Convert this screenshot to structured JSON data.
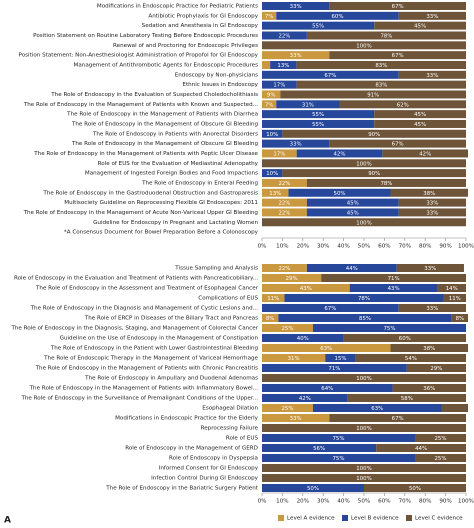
{
  "panel_label": "A",
  "chart_data": [
    {
      "type": "stacked-barh",
      "categories": [
        "Modifications in Endoscopic Practice for Pediatric Patients",
        "Antibiotic Prophylaxis for GI Endoscopy",
        "Sedation and Anesthesia in GI Endoscopy",
        "Position Statement on Routine Laboratory Testing Before Endoscopic Procedures",
        "Renewal of and Proctoring for Endoscopic Privileges",
        "Position Statement: Non-Anesthesiologist Administration of Propofol for GI Endoscopy",
        "Management of Antithrombotic Agents for Endoscopic Procedures",
        "Endoscopy by Non-physicians",
        "Ethnic Issues in Endoscopy",
        "The Role of Endoscopy in the Evaluation of Suspected Choledocholithiasis",
        "The Role of Endoscopy in the Management of Patients with Known and Suspected...",
        "The Role of Endoscopy in the Management of Patients with Diarrhea",
        "The Role of Endoscopy in the Management of Obscure GI Bleeding",
        "The Role of Endoscopy in Patients with Anorectal Disorders",
        "The Role of Endoscopy in the Management of Obscure GI Bleeding",
        "The Role of Endoscopy in the Management of Patients with Peptic Ulcer Disease",
        "Role of EUS for the Evaluation of Mediastinal Adenopathy",
        "Management of Ingested Foreign Bodies and Food Impactions",
        "The Role of Endoscopy in Enteral Feeding",
        "The Role of Endoscopy in the Gastroduodenal Obstruction and Gastroparesis",
        "Multisociety Guideline on Reprocessing Flexible GI Endoscopes: 2011",
        "The Role of Endoscopy in the Management of Acute Non-Variceal Upper GI Bleeding",
        "Guideline for Endoscopy in Pregnant and Lactating Women",
        "*A Consensus Document for Bowel Preparation Before a Colonoscopy"
      ],
      "series": [
        {
          "color": "#c9983f",
          "values": [
            0,
            7,
            0,
            0,
            0,
            33,
            4,
            0,
            0,
            9,
            7,
            0,
            0,
            0,
            0,
            17,
            0,
            0,
            22,
            13,
            22,
            22,
            0,
            null
          ],
          "value_labels": [
            null,
            "7%",
            null,
            null,
            null,
            "33%",
            null,
            null,
            null,
            "9%",
            "7%",
            null,
            null,
            null,
            null,
            "17%",
            null,
            null,
            "22%",
            "13%",
            "22%",
            "22%",
            null,
            null
          ]
        },
        {
          "color": "#27479b",
          "values": [
            33,
            60,
            55,
            22,
            0,
            0,
            13,
            67,
            17,
            0,
            31,
            55,
            55,
            10,
            33,
            42,
            0,
            10,
            0,
            50,
            45,
            45,
            0,
            null
          ],
          "value_labels": [
            "33%",
            "60%",
            "55%",
            "22%",
            null,
            null,
            "13%",
            "67%",
            "17%",
            null,
            "31%",
            "55%",
            "55%",
            "10%",
            "33%",
            "42%",
            null,
            "10%",
            null,
            "50%",
            "45%",
            "45%",
            null,
            null
          ]
        },
        {
          "color": "#6e5438",
          "values": [
            67,
            33,
            45,
            78,
            100,
            67,
            83,
            33,
            83,
            91,
            62,
            45,
            45,
            90,
            67,
            42,
            100,
            90,
            78,
            38,
            33,
            33,
            100,
            null
          ],
          "value_labels": [
            "67%",
            "33%",
            "45%",
            "78%",
            "100%",
            "67%",
            "83%",
            "33%",
            "83%",
            "91%",
            "62%",
            "45%",
            "45%",
            "90%",
            "67%",
            "42%",
            "100%",
            "90%",
            "78%",
            "38%",
            "33%",
            "33%",
            "100%",
            null
          ]
        }
      ],
      "xlim": [
        0,
        100
      ],
      "xticks": [
        {
          "value": 0,
          "label": "0%"
        },
        {
          "value": 10,
          "label": "10%"
        },
        {
          "value": 20,
          "label": "20%"
        },
        {
          "value": 30,
          "label": "30%"
        },
        {
          "value": 40,
          "label": "40%"
        },
        {
          "value": 50,
          "label": "50%"
        },
        {
          "value": 60,
          "label": "60%"
        },
        {
          "value": 70,
          "label": "70%"
        },
        {
          "value": 80,
          "label": "80%"
        },
        {
          "value": 90,
          "label": "90%"
        },
        {
          "value": 100,
          "label": "100%"
        }
      ]
    },
    {
      "type": "stacked-barh",
      "categories": [
        "Tissue Sampling and Analysis",
        "Role of Endoscopy in the Evaluation and Treatment of Patients with Pancreaticobiliary...",
        "The Role of Endoscopy in the Assessment and Treatment of Esophageal Cancer",
        "Complications of EUS",
        "The Role of Endoscopy in the Diagnosis and Management of Cystic Lesions and...",
        "The Role of ERCP in Diseases of the Biliary Tract and Pancreas",
        "The Role of Endoscopy in the Diagnosis, Staging, and Management of Colorectal Cancer",
        "Guideline on the Use of Endoscopy in the Management of Constipation",
        "The Role of Endoscopy in the Patient with Lower Gastrointestinal Bleeding",
        "The Role of Endoscopic Therapy in the Management of Variceal Hemorrhage",
        "The Role of Endoscopy in the Management of Patients with Chronic Pancreatitis",
        "The Role of Endoscopy in Ampullary and Duodenal Adenomas",
        "The Role of Endoscopy in the Management of Patients with Inflammatory Bowel...",
        "The Role of Endoscopy in the Surveillance of Premalignant Conditions of the Upper...",
        "Esophageal Dilation",
        "Modifications in Endoscopic Practice for the Elderly",
        "Reprocessing Failure",
        "Role of EUS",
        "Role of Endoscopy in the Management of GERD",
        "Role of Endoscopy in Dyspepsia",
        "Informed Consent for GI Endoscopy",
        "Infection Control During GI Endoscopy",
        "The Role of Endoscopy in the Bariatric Surgery Patient"
      ],
      "series": [
        {
          "name": "Level A evidence",
          "color": "#c9983f",
          "values": [
            22,
            29,
            43,
            11,
            0,
            8,
            25,
            0,
            63,
            31,
            0,
            0,
            0,
            0,
            25,
            33,
            0,
            0,
            0,
            0,
            0,
            0,
            0
          ],
          "value_labels": [
            "22%",
            "29%",
            "43%",
            "11%",
            null,
            "8%",
            "25%",
            null,
            "63%",
            "31%",
            null,
            null,
            null,
            null,
            "25%",
            "33%",
            null,
            null,
            null,
            null,
            null,
            null,
            null
          ]
        },
        {
          "name": "Level B evidence",
          "color": "#27479b",
          "values": [
            44,
            0,
            43,
            78,
            67,
            85,
            75,
            40,
            0,
            15,
            71,
            0,
            64,
            42,
            63,
            0,
            0,
            75,
            56,
            75,
            0,
            0,
            50
          ],
          "value_labels": [
            "44%",
            null,
            "43%",
            "78%",
            "67%",
            "85%",
            "75%",
            "40%",
            null,
            "15%",
            "71%",
            null,
            "64%",
            "42%",
            "63%",
            null,
            null,
            "75%",
            "56%",
            "75%",
            null,
            null,
            "50%"
          ]
        },
        {
          "name": "Level C evidence",
          "color": "#6e5438",
          "values": [
            33,
            71,
            14,
            11,
            33,
            8,
            0,
            60,
            38,
            54,
            29,
            100,
            36,
            58,
            13,
            67,
            100,
            25,
            44,
            25,
            100,
            100,
            50
          ],
          "value_labels": [
            "33%",
            "71%",
            "14%",
            "11%",
            "33%",
            "8%",
            null,
            "60%",
            "38%",
            "54%",
            "29%",
            "100%",
            "36%",
            "58%",
            null,
            "67%",
            "100%",
            "25%",
            "44%",
            "25%",
            "100%",
            "100%",
            "50%"
          ]
        }
      ],
      "xlim": [
        0,
        100
      ],
      "xticks": [
        {
          "value": 0,
          "label": "0%"
        },
        {
          "value": 10,
          "label": "10%"
        },
        {
          "value": 20,
          "label": "20%"
        },
        {
          "value": 30,
          "label": "30%"
        },
        {
          "value": 40,
          "label": "40%"
        },
        {
          "value": 50,
          "label": "50%"
        },
        {
          "value": 60,
          "label": "60%"
        },
        {
          "value": 70,
          "label": "70%"
        },
        {
          "value": 80,
          "label": "80%"
        },
        {
          "value": 90,
          "label": "90%"
        },
        {
          "value": 100,
          "label": "100%"
        }
      ],
      "legend": "bottom-right"
    }
  ]
}
